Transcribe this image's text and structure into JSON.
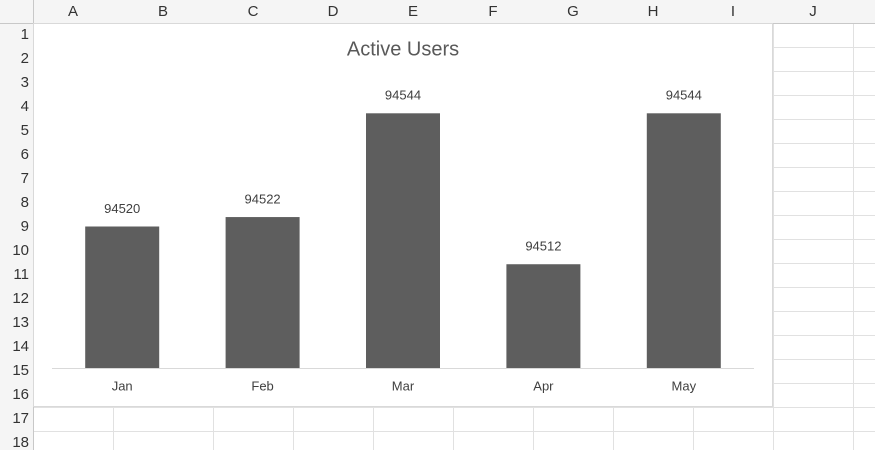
{
  "sheet": {
    "columns": [
      "A",
      "B",
      "C",
      "D",
      "E",
      "F",
      "G",
      "H",
      "I",
      "J"
    ],
    "rows": [
      "1",
      "2",
      "3",
      "4",
      "5",
      "6",
      "7",
      "8",
      "9",
      "10",
      "11",
      "12",
      "13",
      "14",
      "15",
      "16",
      "17",
      "18"
    ]
  },
  "chart_data": {
    "type": "bar",
    "title": "Active Users",
    "categories": [
      "Jan",
      "Feb",
      "Mar",
      "Apr",
      "May"
    ],
    "values": [
      94520,
      94522,
      94544,
      94512,
      94544
    ],
    "color": "#5e5e5e",
    "ylim": [
      94490,
      94550
    ]
  }
}
